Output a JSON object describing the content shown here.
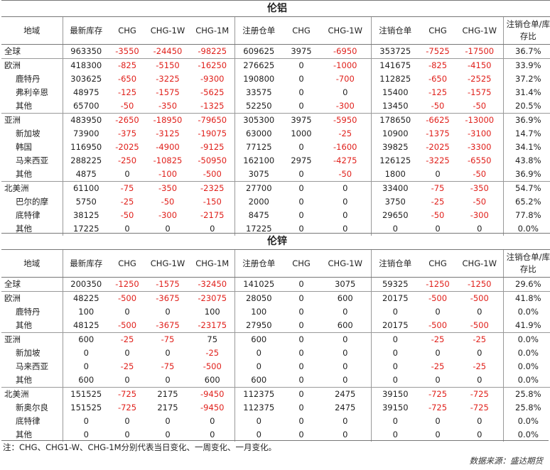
{
  "columns": [
    "地域",
    "最新库存",
    "CHG",
    "CHG-1W",
    "CHG-1M",
    "注册仓单",
    "CHG",
    "CHG-1W",
    "注销仓单",
    "CHG",
    "CHG-1W",
    "注销仓单/库存比"
  ],
  "colors": {
    "negative": "#e0201b",
    "text": "#222222",
    "border": "#999999"
  },
  "tables": [
    {
      "title": "伦铝",
      "rows": [
        {
          "region": "全球",
          "level": 0,
          "group_start": false,
          "cells": [
            "963350",
            "-3550",
            "-24450",
            "-98225",
            "609625",
            "3975",
            "-6950",
            "353725",
            "-7525",
            "-17500",
            "36.7%"
          ]
        },
        {
          "region": "欧洲",
          "level": 0,
          "group_start": true,
          "cells": [
            "418300",
            "-825",
            "-5150",
            "-16250",
            "276625",
            "0",
            "-1000",
            "141675",
            "-825",
            "-4150",
            "33.9%"
          ]
        },
        {
          "region": "鹿特丹",
          "level": 1,
          "group_start": false,
          "cells": [
            "303625",
            "-650",
            "-3225",
            "-9300",
            "190800",
            "0",
            "-700",
            "112825",
            "-650",
            "-2525",
            "37.2%"
          ]
        },
        {
          "region": "弗利辛恩",
          "level": 1,
          "group_start": false,
          "cells": [
            "48975",
            "-125",
            "-1575",
            "-5625",
            "33575",
            "0",
            "0",
            "15400",
            "-125",
            "-1575",
            "31.4%"
          ]
        },
        {
          "region": "其他",
          "level": 1,
          "group_start": false,
          "cells": [
            "65700",
            "-50",
            "-350",
            "-1325",
            "52250",
            "0",
            "-300",
            "13450",
            "-50",
            "-50",
            "20.5%"
          ]
        },
        {
          "region": "亚洲",
          "level": 0,
          "group_start": true,
          "cells": [
            "483950",
            "-2650",
            "-18950",
            "-79650",
            "305300",
            "3975",
            "-5950",
            "178650",
            "-6625",
            "-13000",
            "36.9%"
          ]
        },
        {
          "region": "新加坡",
          "level": 1,
          "group_start": false,
          "cells": [
            "73900",
            "-375",
            "-3125",
            "-19075",
            "63000",
            "1000",
            "-25",
            "10900",
            "-1375",
            "-3100",
            "14.7%"
          ]
        },
        {
          "region": "韩国",
          "level": 1,
          "group_start": false,
          "cells": [
            "116950",
            "-2025",
            "-4900",
            "-9125",
            "77125",
            "0",
            "-1600",
            "39825",
            "-2025",
            "-3300",
            "34.1%"
          ]
        },
        {
          "region": "马来西亚",
          "level": 1,
          "group_start": false,
          "cells": [
            "288225",
            "-250",
            "-10825",
            "-50950",
            "162100",
            "2975",
            "-4275",
            "126125",
            "-3225",
            "-6550",
            "43.8%"
          ]
        },
        {
          "region": "其他",
          "level": 1,
          "group_start": false,
          "cells": [
            "4875",
            "0",
            "-100",
            "-500",
            "3075",
            "0",
            "-50",
            "1800",
            "0",
            "-50",
            "36.9%"
          ]
        },
        {
          "region": "北美洲",
          "level": 0,
          "group_start": true,
          "cells": [
            "61100",
            "-75",
            "-350",
            "-2325",
            "27700",
            "0",
            "0",
            "33400",
            "-75",
            "-350",
            "54.7%"
          ]
        },
        {
          "region": "巴尔的摩",
          "level": 1,
          "group_start": false,
          "cells": [
            "5750",
            "-25",
            "-50",
            "-150",
            "2000",
            "0",
            "0",
            "3750",
            "-25",
            "-50",
            "65.2%"
          ]
        },
        {
          "region": "底特律",
          "level": 1,
          "group_start": false,
          "cells": [
            "38125",
            "-50",
            "-300",
            "-2175",
            "8475",
            "0",
            "0",
            "29650",
            "-50",
            "-300",
            "77.8%"
          ]
        },
        {
          "region": "其他",
          "level": 1,
          "group_start": false,
          "cells": [
            "17225",
            "0",
            "0",
            "0",
            "17225",
            "0",
            "0",
            "0",
            "0",
            "0",
            "0.0%"
          ]
        }
      ]
    },
    {
      "title": "伦锌",
      "rows": [
        {
          "region": "全球",
          "level": 0,
          "group_start": false,
          "cells": [
            "200350",
            "-1250",
            "-1575",
            "-32450",
            "141025",
            "0",
            "3075",
            "59325",
            "-1250",
            "-1250",
            "29.6%"
          ]
        },
        {
          "region": "欧洲",
          "level": 0,
          "group_start": true,
          "cells": [
            "48225",
            "-500",
            "-3675",
            "-23075",
            "28050",
            "0",
            "600",
            "20175",
            "-500",
            "-500",
            "41.8%"
          ]
        },
        {
          "region": "鹿特丹",
          "level": 1,
          "group_start": false,
          "cells": [
            "100",
            "0",
            "0",
            "100",
            "100",
            "0",
            "0",
            "0",
            "0",
            "0",
            "0.0%"
          ]
        },
        {
          "region": "其他",
          "level": 1,
          "group_start": false,
          "cells": [
            "48125",
            "-500",
            "-3675",
            "-23175",
            "27950",
            "0",
            "600",
            "20175",
            "-500",
            "-500",
            "41.9%"
          ]
        },
        {
          "region": "亚洲",
          "level": 0,
          "group_start": true,
          "cells": [
            "600",
            "-25",
            "-75",
            "75",
            "600",
            "0",
            "0",
            "0",
            "-25",
            "-25",
            "0.0%"
          ]
        },
        {
          "region": "新加坡",
          "level": 1,
          "group_start": false,
          "cells": [
            "0",
            "0",
            "0",
            "-25",
            "0",
            "0",
            "0",
            "0",
            "0",
            "0",
            "0.0%"
          ]
        },
        {
          "region": "马来西亚",
          "level": 1,
          "group_start": false,
          "cells": [
            "0",
            "-25",
            "-75",
            "-500",
            "0",
            "0",
            "0",
            "0",
            "-25",
            "-25",
            "0.0%"
          ]
        },
        {
          "region": "其他",
          "level": 1,
          "group_start": false,
          "cells": [
            "600",
            "0",
            "0",
            "600",
            "600",
            "0",
            "0",
            "0",
            "0",
            "0",
            "0.0%"
          ]
        },
        {
          "region": "北美洲",
          "level": 0,
          "group_start": true,
          "cells": [
            "151525",
            "-725",
            "2175",
            "-9450",
            "112375",
            "0",
            "2475",
            "39150",
            "-725",
            "-725",
            "25.8%"
          ]
        },
        {
          "region": "新奥尔良",
          "level": 1,
          "group_start": false,
          "cells": [
            "151525",
            "-725",
            "2175",
            "-9450",
            "112375",
            "0",
            "2475",
            "39150",
            "-725",
            "-725",
            "25.8%"
          ]
        },
        {
          "region": "底特律",
          "level": 1,
          "group_start": false,
          "cells": [
            "0",
            "0",
            "0",
            "0",
            "0",
            "0",
            "0",
            "0",
            "0",
            "0",
            "0.0%"
          ]
        },
        {
          "region": "其他",
          "level": 1,
          "group_start": false,
          "cells": [
            "0",
            "0",
            "0",
            "0",
            "0",
            "0",
            "0",
            "0",
            "0",
            "0",
            "0.0%"
          ]
        }
      ]
    }
  ],
  "note": "注：CHG、CHG1-W、CHG-1M分别代表当日变化、一周变化、一月变化。",
  "source": "数据来源：盛达期货"
}
